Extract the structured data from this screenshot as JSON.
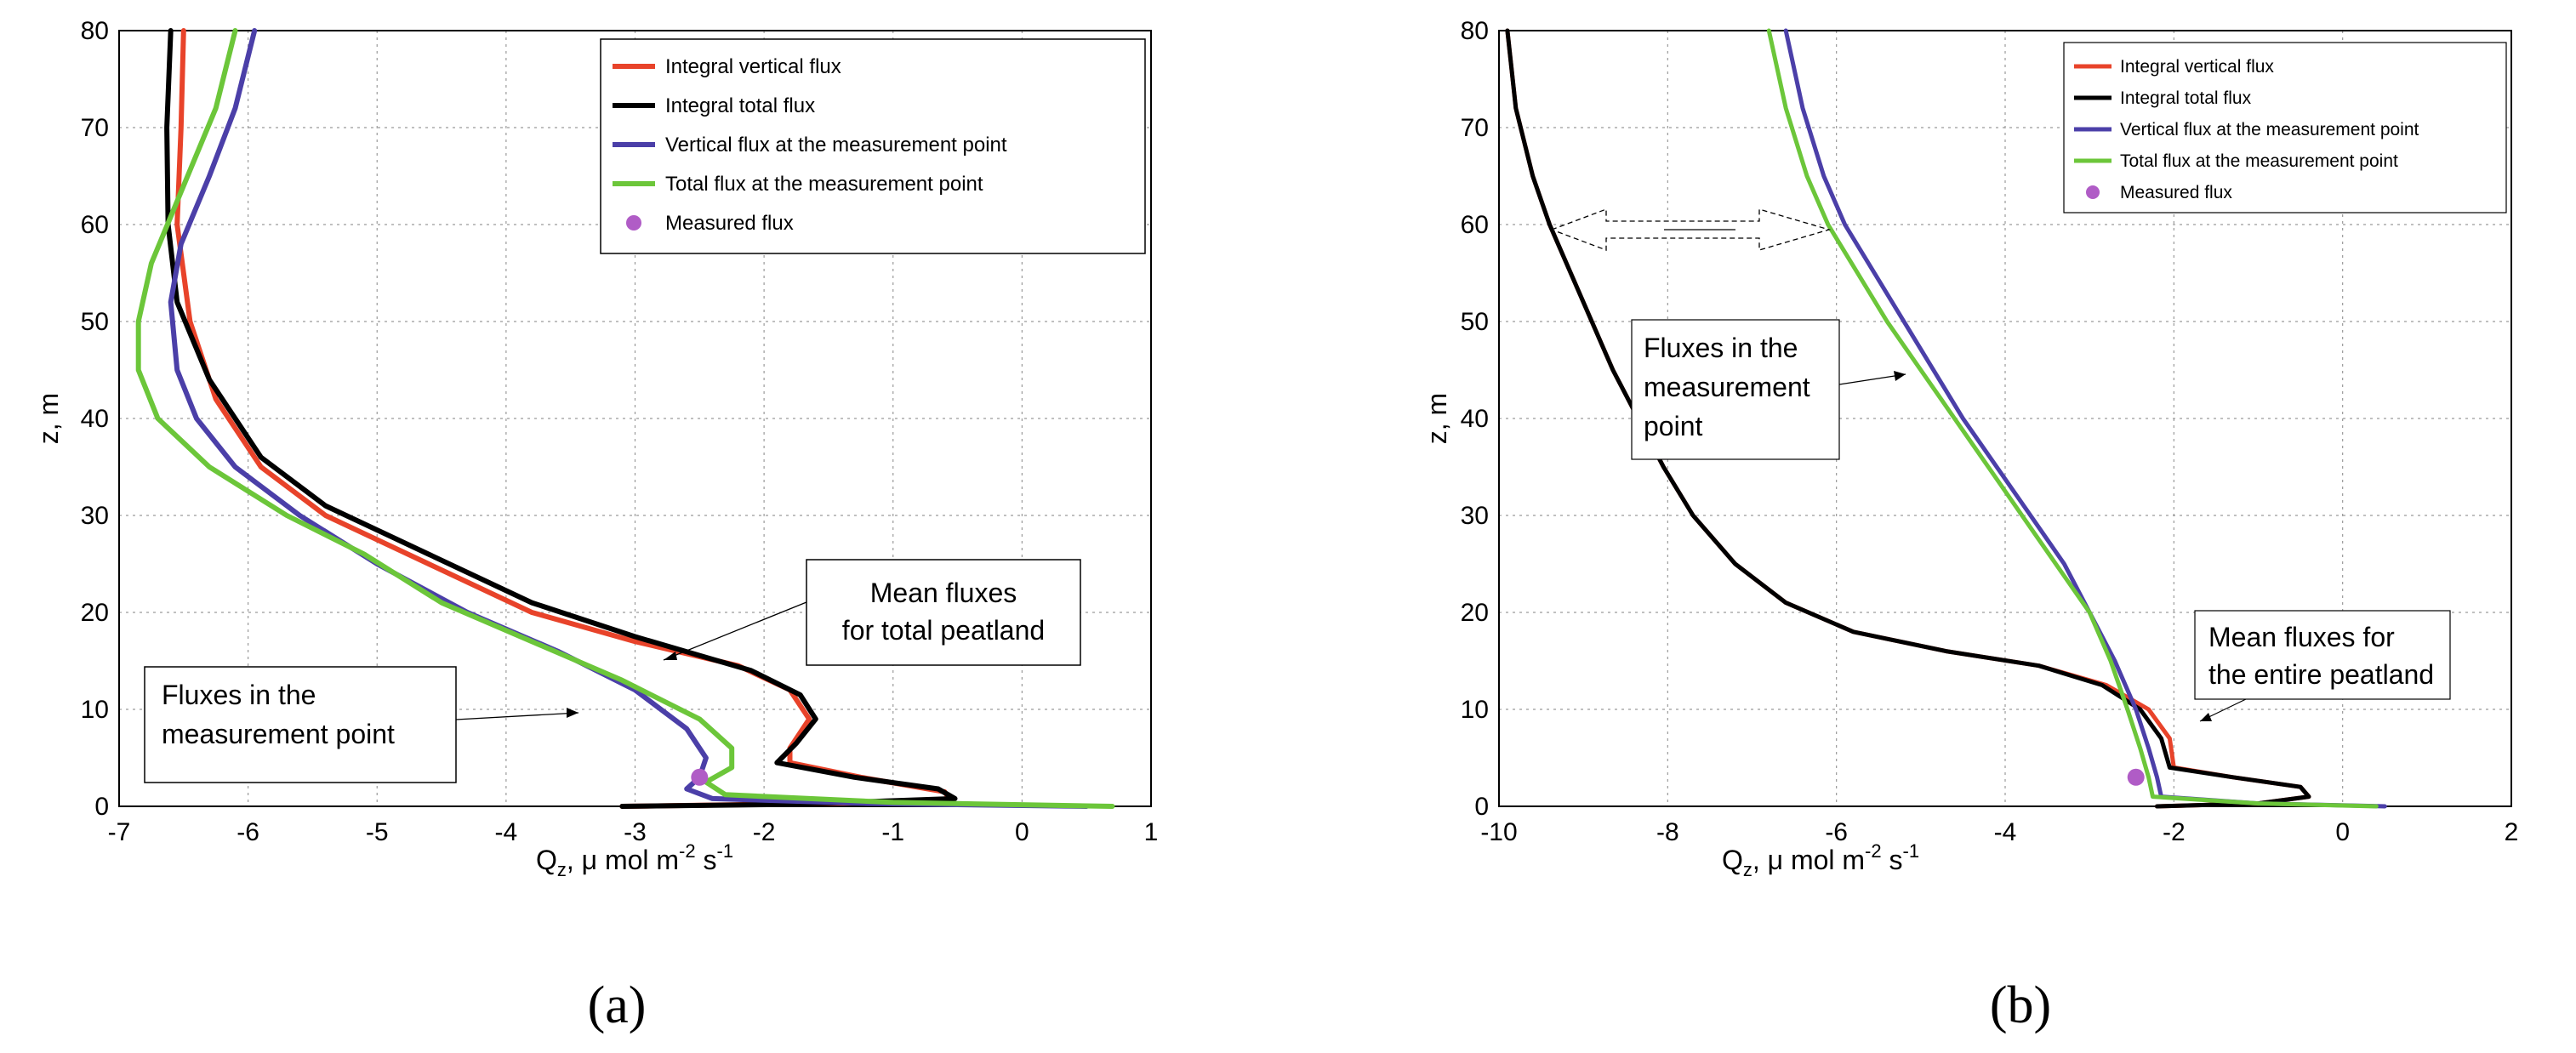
{
  "colors": {
    "integral_vertical": "#e8432a",
    "integral_total": "#000000",
    "vertical_point": "#4b3fa8",
    "total_point": "#6cc63a",
    "measured": "#b05cc6"
  },
  "chart_data": [
    {
      "panel_label": "(a)",
      "type": "line",
      "xlabel": "Q",
      "xlabel_sub": "z",
      "xlabel_rest": ", μ mol m",
      "xlabel_exp": "-2",
      "xlabel_end": " s",
      "xlabel_exp2": "-1",
      "ylabel": "z, m",
      "xlim": [
        -7,
        1
      ],
      "ylim": [
        0,
        80
      ],
      "xticks": [
        -7,
        -6,
        -5,
        -4,
        -3,
        -2,
        -1,
        0,
        1
      ],
      "yticks": [
        0,
        10,
        20,
        30,
        40,
        50,
        60,
        70,
        80
      ],
      "grid": true,
      "legend_position": "top-right",
      "legend": [
        "Integral vertical flux",
        "Integral total flux",
        "Vertical flux at the measurement point",
        "Total flux at the measurement point",
        "Measured flux"
      ],
      "annotations": [
        {
          "lines": [
            "Mean fluxes",
            "for total peatland"
          ]
        },
        {
          "lines": [
            "Fluxes in the",
            "measurement point"
          ]
        }
      ],
      "series": [
        {
          "name": "Integral vertical flux",
          "color_key": "integral_vertical",
          "points": [
            [
              -6.5,
              80
            ],
            [
              -6.52,
              70
            ],
            [
              -6.55,
              60
            ],
            [
              -6.45,
              50
            ],
            [
              -6.25,
              42
            ],
            [
              -5.9,
              35
            ],
            [
              -5.4,
              30
            ],
            [
              -4.6,
              25
            ],
            [
              -3.8,
              20
            ],
            [
              -3.0,
              17
            ],
            [
              -2.2,
              14.5
            ],
            [
              -1.8,
              12
            ],
            [
              -1.65,
              9
            ],
            [
              -1.8,
              6
            ],
            [
              -1.8,
              4.5
            ],
            [
              -1.25,
              3
            ],
            [
              -0.6,
              1.5
            ],
            [
              -0.55,
              0.5
            ],
            [
              -2.0,
              0.2
            ],
            [
              -3.1,
              0
            ]
          ]
        },
        {
          "name": "Integral total flux",
          "color_key": "integral_total",
          "points": [
            [
              -6.6,
              80
            ],
            [
              -6.63,
              70
            ],
            [
              -6.62,
              60
            ],
            [
              -6.55,
              52
            ],
            [
              -6.3,
              44
            ],
            [
              -5.9,
              36
            ],
            [
              -5.4,
              31
            ],
            [
              -4.6,
              26
            ],
            [
              -3.8,
              21
            ],
            [
              -3.0,
              17.5
            ],
            [
              -2.1,
              14
            ],
            [
              -1.72,
              11.5
            ],
            [
              -1.6,
              9
            ],
            [
              -1.75,
              6.5
            ],
            [
              -1.9,
              4.5
            ],
            [
              -1.3,
              3
            ],
            [
              -0.65,
              1.8
            ],
            [
              -0.52,
              0.8
            ],
            [
              -1.8,
              0.2
            ],
            [
              -3.1,
              0
            ]
          ]
        },
        {
          "name": "Vertical flux at the measurement point",
          "color_key": "vertical_point",
          "points": [
            [
              -5.95,
              80
            ],
            [
              -6.1,
              72
            ],
            [
              -6.3,
              65
            ],
            [
              -6.52,
              58
            ],
            [
              -6.6,
              52
            ],
            [
              -6.55,
              45
            ],
            [
              -6.4,
              40
            ],
            [
              -6.1,
              35
            ],
            [
              -5.6,
              30
            ],
            [
              -5.0,
              25
            ],
            [
              -4.3,
              20
            ],
            [
              -3.6,
              16
            ],
            [
              -3.0,
              12
            ],
            [
              -2.6,
              8
            ],
            [
              -2.45,
              5
            ],
            [
              -2.5,
              3
            ],
            [
              -2.6,
              1.8
            ],
            [
              -2.4,
              0.8
            ],
            [
              -1.2,
              0.3
            ],
            [
              0.5,
              0
            ]
          ]
        },
        {
          "name": "Total flux at the measurement point",
          "color_key": "total_point",
          "points": [
            [
              -6.1,
              80
            ],
            [
              -6.25,
              72
            ],
            [
              -6.5,
              64
            ],
            [
              -6.75,
              56
            ],
            [
              -6.85,
              50
            ],
            [
              -6.85,
              45
            ],
            [
              -6.7,
              40
            ],
            [
              -6.3,
              35
            ],
            [
              -5.7,
              30
            ],
            [
              -5.1,
              26
            ],
            [
              -4.5,
              21
            ],
            [
              -3.8,
              17
            ],
            [
              -3.1,
              13
            ],
            [
              -2.5,
              9
            ],
            [
              -2.25,
              6
            ],
            [
              -2.25,
              4
            ],
            [
              -2.45,
              2.5
            ],
            [
              -2.3,
              1.2
            ],
            [
              -1.0,
              0.4
            ],
            [
              0.7,
              0
            ]
          ]
        }
      ],
      "measured_flux": {
        "x": -2.5,
        "y": 3
      }
    },
    {
      "panel_label": "(b)",
      "type": "line",
      "xlabel": "Q",
      "xlabel_sub": "z",
      "xlabel_rest": ", μ mol m",
      "xlabel_exp": "-2",
      "xlabel_end": " s",
      "xlabel_exp2": "-1",
      "ylabel": "z, m",
      "xlim": [
        -10,
        2
      ],
      "ylim": [
        0,
        80
      ],
      "xticks": [
        -10,
        -8,
        -6,
        -4,
        -2,
        0,
        2
      ],
      "yticks": [
        0,
        10,
        20,
        30,
        40,
        50,
        60,
        70,
        80
      ],
      "grid": true,
      "legend_position": "top-right",
      "legend": [
        "Integral vertical flux",
        "Integral total flux",
        "Vertical flux at the measurement point",
        "Total flux at the measurement point",
        "Measured flux"
      ],
      "annotations": [
        {
          "lines": [
            "Fluxes in the",
            "measurement",
            "point"
          ]
        },
        {
          "lines": [
            "Mean fluxes for",
            "the entire peatland"
          ]
        }
      ],
      "series": [
        {
          "name": "Integral vertical flux",
          "color_key": "integral_vertical",
          "points": [
            [
              -9.9,
              80
            ],
            [
              -9.8,
              72
            ],
            [
              -9.6,
              65
            ],
            [
              -9.4,
              60
            ],
            [
              -9.15,
              55
            ],
            [
              -8.9,
              50
            ],
            [
              -8.65,
              45
            ],
            [
              -8.35,
              40
            ],
            [
              -8.05,
              35
            ],
            [
              -7.7,
              30
            ],
            [
              -7.2,
              25
            ],
            [
              -6.6,
              21
            ],
            [
              -5.8,
              18
            ],
            [
              -4.7,
              16
            ],
            [
              -3.6,
              14.5
            ],
            [
              -2.8,
              12.5
            ],
            [
              -2.3,
              10
            ],
            [
              -2.05,
              7
            ],
            [
              -2.0,
              4
            ],
            [
              -1.3,
              3
            ],
            [
              -0.5,
              2
            ],
            [
              -0.4,
              1
            ],
            [
              -1.0,
              0.3
            ],
            [
              -2.2,
              0
            ]
          ]
        },
        {
          "name": "Integral total flux",
          "color_key": "integral_total",
          "points": [
            [
              -9.9,
              80
            ],
            [
              -9.8,
              72
            ],
            [
              -9.6,
              65
            ],
            [
              -9.4,
              60
            ],
            [
              -9.15,
              55
            ],
            [
              -8.9,
              50
            ],
            [
              -8.65,
              45
            ],
            [
              -8.35,
              40
            ],
            [
              -8.05,
              35
            ],
            [
              -7.7,
              30
            ],
            [
              -7.2,
              25
            ],
            [
              -6.6,
              21
            ],
            [
              -5.8,
              18
            ],
            [
              -4.7,
              16
            ],
            [
              -3.6,
              14.5
            ],
            [
              -2.85,
              12.5
            ],
            [
              -2.4,
              10
            ],
            [
              -2.15,
              7
            ],
            [
              -2.05,
              4
            ],
            [
              -1.3,
              3
            ],
            [
              -0.5,
              2
            ],
            [
              -0.4,
              1
            ],
            [
              -1.0,
              0.3
            ],
            [
              -2.2,
              0
            ]
          ]
        },
        {
          "name": "Vertical flux at the measurement point",
          "color_key": "vertical_point",
          "points": [
            [
              -6.6,
              80
            ],
            [
              -6.4,
              72
            ],
            [
              -6.15,
              65
            ],
            [
              -5.9,
              60
            ],
            [
              -5.55,
              55
            ],
            [
              -5.2,
              50
            ],
            [
              -4.85,
              45
            ],
            [
              -4.5,
              40
            ],
            [
              -4.1,
              35
            ],
            [
              -3.7,
              30
            ],
            [
              -3.3,
              25
            ],
            [
              -3.0,
              20
            ],
            [
              -2.7,
              15
            ],
            [
              -2.45,
              10
            ],
            [
              -2.3,
              6
            ],
            [
              -2.2,
              3
            ],
            [
              -2.15,
              1
            ],
            [
              -1.0,
              0.3
            ],
            [
              0.5,
              0
            ]
          ]
        },
        {
          "name": "Total flux at the measurement point",
          "color_key": "total_point",
          "points": [
            [
              -6.8,
              80
            ],
            [
              -6.6,
              72
            ],
            [
              -6.35,
              65
            ],
            [
              -6.1,
              60
            ],
            [
              -5.75,
              55
            ],
            [
              -5.4,
              50
            ],
            [
              -5.0,
              45
            ],
            [
              -4.6,
              40
            ],
            [
              -4.2,
              35
            ],
            [
              -3.8,
              30
            ],
            [
              -3.4,
              25
            ],
            [
              -3.0,
              20
            ],
            [
              -2.75,
              15
            ],
            [
              -2.55,
              10
            ],
            [
              -2.4,
              6
            ],
            [
              -2.3,
              3
            ],
            [
              -2.25,
              1
            ],
            [
              -1.0,
              0.3
            ],
            [
              0.4,
              0
            ]
          ]
        }
      ],
      "measured_flux": {
        "x": -2.45,
        "y": 3
      }
    }
  ]
}
